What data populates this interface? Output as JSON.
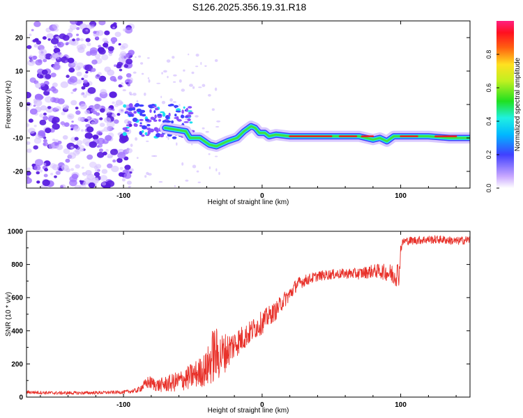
{
  "title": "S126.2025.356.19.31.R18",
  "colors": {
    "snr_line": "#e8312a",
    "axis": "#000000",
    "spec_low": "#a780ff",
    "spec_mid": "#4040ff",
    "spec_hi_cyan": "#20e0f0",
    "spec_green": "#40e040",
    "spec_red": "#e82020"
  },
  "chart_data": [
    {
      "type": "heatmap",
      "name": "spectrogram",
      "title": "",
      "xlabel": "Height of straight line (km)",
      "ylabel": "Frequency (Hz)",
      "xlim": [
        -170,
        150
      ],
      "ylim": [
        -25,
        25
      ],
      "xticks": [
        -100,
        0,
        100
      ],
      "xtick_labels": [
        "-100",
        "0",
        "100"
      ],
      "yticks": [
        -20,
        -10,
        0,
        10,
        20
      ],
      "ytick_labels": [
        "-20",
        "-10",
        "0",
        "10",
        "20"
      ],
      "noise_region": {
        "x_from": -170,
        "x_to": -100,
        "f_from": -25,
        "f_to": 25
      },
      "scatter_region": {
        "x_from": -100,
        "x_to": -50,
        "f_from": -10,
        "f_to": 0
      },
      "ridge": {
        "x": [
          -70,
          -55,
          -52,
          -45,
          -38,
          -33,
          -25,
          -18,
          -13,
          -8,
          -5,
          -2,
          2,
          5,
          10,
          20,
          40,
          60,
          70,
          75,
          80,
          85,
          90,
          95,
          100,
          110,
          120,
          135,
          150
        ],
        "f": [
          -7,
          -8,
          -10,
          -10,
          -12,
          -12.5,
          -11,
          -10,
          -8,
          -6.5,
          -7,
          -8.5,
          -8.5,
          -9.5,
          -9,
          -9.5,
          -9.5,
          -9.5,
          -9.5,
          -10,
          -10.5,
          -10,
          -11,
          -9.5,
          -9.5,
          -9.5,
          -9.5,
          -10,
          -10
        ]
      },
      "colorbar": {
        "label": "Normalized spectral amplitude",
        "range": [
          0,
          1
        ],
        "ticks": [
          0.0,
          0.2,
          0.4,
          0.6,
          0.8
        ],
        "tick_labels": [
          "0.0",
          "0.2",
          "0.4",
          "0.6",
          "0.8"
        ]
      }
    },
    {
      "type": "line",
      "name": "snr",
      "title": "",
      "xlabel": "Height of straight line (km)",
      "ylabel": "SNR (10 * v/v)",
      "xlim": [
        -170,
        150
      ],
      "ylim": [
        0,
        1000
      ],
      "xticks": [
        -100,
        0,
        100
      ],
      "xtick_labels": [
        "-100",
        "0",
        "100"
      ],
      "yticks": [
        0,
        200,
        400,
        600,
        800,
        1000
      ],
      "ytick_labels": [
        "0",
        "200",
        "400",
        "600",
        "800",
        "1000"
      ],
      "series": [
        {
          "name": "SNR",
          "x": [
            -170,
            -150,
            -130,
            -110,
            -100,
            -90,
            -82,
            -75,
            -65,
            -55,
            -50,
            -45,
            -40,
            -35,
            -30,
            -25,
            -20,
            -15,
            -10,
            -5,
            0,
            5,
            10,
            15,
            20,
            25,
            30,
            40,
            50,
            60,
            70,
            80,
            85,
            90,
            95,
            99,
            100,
            102,
            110,
            120,
            130,
            140,
            150
          ],
          "values": [
            30,
            25,
            25,
            28,
            30,
            40,
            90,
            70,
            85,
            110,
            130,
            150,
            170,
            260,
            250,
            280,
            320,
            350,
            380,
            420,
            450,
            490,
            520,
            580,
            620,
            680,
            700,
            730,
            740,
            745,
            745,
            760,
            760,
            750,
            740,
            750,
            900,
            940,
            945,
            950,
            950,
            940,
            950
          ],
          "noise": [
            10,
            10,
            10,
            10,
            10,
            15,
            40,
            40,
            55,
            70,
            80,
            90,
            110,
            180,
            140,
            110,
            90,
            80,
            70,
            70,
            70,
            60,
            55,
            50,
            45,
            40,
            35,
            30,
            30,
            30,
            35,
            40,
            45,
            50,
            70,
            80,
            30,
            25,
            25,
            25,
            25,
            25,
            25
          ]
        }
      ]
    }
  ]
}
